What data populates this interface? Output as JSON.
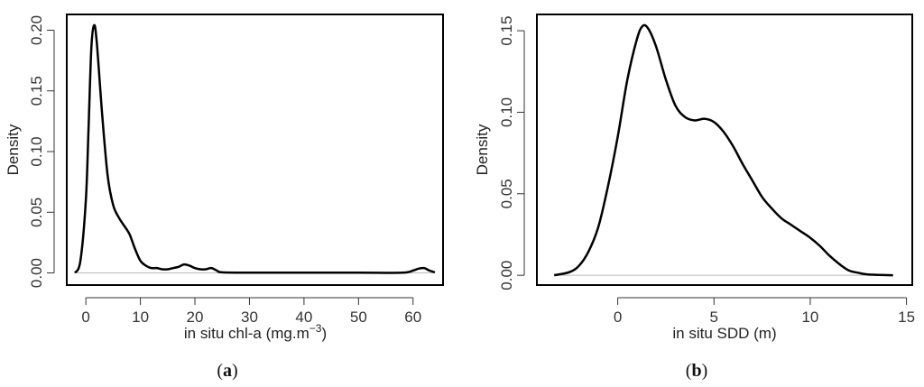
{
  "chart_data": [
    {
      "type": "line",
      "panel_label": "a",
      "xlabel": "in situ chl-a (mg.m",
      "xlabel_superscript": "−3",
      "xlabel_suffix": ")",
      "ylabel": "Density",
      "xlim": [
        -3.5,
        65.5
      ],
      "ylim": [
        -0.01,
        0.213
      ],
      "x_ticks": [
        0,
        10,
        20,
        30,
        40,
        50,
        60
      ],
      "y_ticks": [
        0.0,
        0.05,
        0.1,
        0.15,
        0.2
      ],
      "y_tick_labels": [
        "0.00",
        "0.05",
        "0.10",
        "0.15",
        "0.20"
      ],
      "baseline": 0,
      "grid": false,
      "series": [
        {
          "x": [
            -2,
            -1,
            0,
            0.5,
            1,
            1.5,
            2,
            3,
            4,
            5,
            6,
            7,
            8,
            9,
            10,
            11,
            12,
            13,
            14,
            15,
            16,
            17,
            18,
            19,
            20,
            21,
            22,
            23,
            24,
            25,
            30,
            40,
            50,
            58,
            60,
            61,
            62,
            63,
            64
          ],
          "y": [
            0.0,
            0.01,
            0.06,
            0.12,
            0.185,
            0.204,
            0.19,
            0.13,
            0.08,
            0.056,
            0.046,
            0.039,
            0.032,
            0.02,
            0.01,
            0.006,
            0.004,
            0.004,
            0.003,
            0.003,
            0.004,
            0.005,
            0.007,
            0.006,
            0.004,
            0.003,
            0.003,
            0.004,
            0.002,
            0.0005,
            0.0002,
            0.0002,
            0.0002,
            0.0002,
            0.002,
            0.0035,
            0.004,
            0.002,
            0.0005
          ]
        }
      ]
    },
    {
      "type": "line",
      "panel_label": "b",
      "xlabel": "in situ SDD (m)",
      "ylabel": "Density",
      "xlim": [
        -4.2,
        15.3
      ],
      "ylim": [
        -0.006,
        0.16
      ],
      "x_ticks": [
        0,
        5,
        10,
        15
      ],
      "y_ticks": [
        0.0,
        0.05,
        0.1,
        0.15
      ],
      "y_tick_labels": [
        "0.00",
        "0.05",
        "0.10",
        "0.15"
      ],
      "baseline": 0,
      "grid": false,
      "series": [
        {
          "x": [
            -3.3,
            -2.5,
            -2,
            -1.5,
            -1,
            -0.5,
            0,
            0.5,
            1,
            1.3,
            1.6,
            2,
            2.5,
            3,
            3.5,
            4,
            4.5,
            5,
            5.5,
            6,
            6.5,
            7,
            7.5,
            8,
            8.5,
            9,
            9.5,
            10,
            10.5,
            11,
            11.5,
            12,
            12.5,
            13,
            14.3
          ],
          "y": [
            0.0,
            0.002,
            0.006,
            0.015,
            0.03,
            0.055,
            0.085,
            0.12,
            0.145,
            0.153,
            0.151,
            0.14,
            0.12,
            0.104,
            0.097,
            0.095,
            0.096,
            0.094,
            0.088,
            0.079,
            0.068,
            0.058,
            0.048,
            0.041,
            0.035,
            0.031,
            0.027,
            0.023,
            0.018,
            0.012,
            0.007,
            0.003,
            0.0015,
            0.0005,
            0.0
          ]
        }
      ]
    }
  ]
}
